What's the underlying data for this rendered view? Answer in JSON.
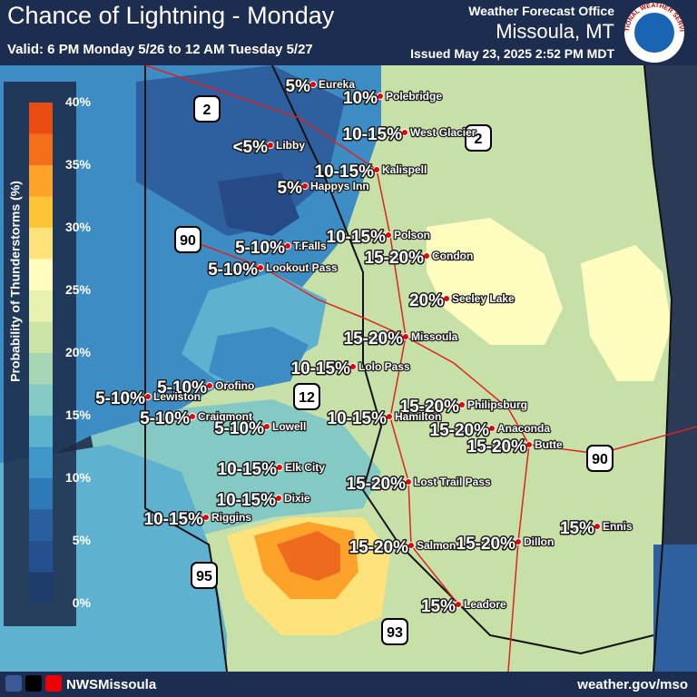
{
  "header": {
    "title": "Chance of Lightning - Monday",
    "valid": "Valid: 6 PM Monday 5/26 to 12 AM Tuesday 5/27",
    "office": "Weather Forecast Office",
    "location": "Missoula, MT",
    "issued": "Issued May 23, 2025 2:52 PM MDT",
    "logo": "NATIONAL WEATHER SERVICE"
  },
  "legend": {
    "title": "Probability of Thunderstorms (%)",
    "labels": [
      "40%",
      "35%",
      "30%",
      "25%",
      "20%",
      "15%",
      "10%",
      "5%",
      "0%"
    ]
  },
  "shields": [
    "2",
    "2",
    "90",
    "90",
    "12",
    "95",
    "93"
  ],
  "cities": [
    {
      "name": "Eureka",
      "chance": "5%"
    },
    {
      "name": "Polebridge",
      "chance": "10%"
    },
    {
      "name": "West Glacier",
      "chance": "10-15%"
    },
    {
      "name": "Libby",
      "chance": "<5%"
    },
    {
      "name": "Kalispell",
      "chance": "10-15%"
    },
    {
      "name": "Happys Inn",
      "chance": "5%"
    },
    {
      "name": "Polson",
      "chance": "10-15%"
    },
    {
      "name": "T.Falls",
      "chance": "5-10%"
    },
    {
      "name": "Condon",
      "chance": "15-20%"
    },
    {
      "name": "Lookout Pass",
      "chance": "5-10%"
    },
    {
      "name": "Seeley Lake",
      "chance": "20%"
    },
    {
      "name": "Missoula",
      "chance": "15-20%"
    },
    {
      "name": "Lolo Pass",
      "chance": "10-15%"
    },
    {
      "name": "Orofino",
      "chance": "5-10%"
    },
    {
      "name": "Lewiston",
      "chance": "5-10%"
    },
    {
      "name": "Philipsburg",
      "chance": "15-20%"
    },
    {
      "name": "Craigmont",
      "chance": "5-10%"
    },
    {
      "name": "Hamilton",
      "chance": "10-15%"
    },
    {
      "name": "Lowell",
      "chance": "5-10%"
    },
    {
      "name": "Anaconda",
      "chance": "15-20%"
    },
    {
      "name": "Butte",
      "chance": "15-20%"
    },
    {
      "name": "Elk City",
      "chance": "10-15%"
    },
    {
      "name": "Lost Trail Pass",
      "chance": "15-20%"
    },
    {
      "name": "Dixie",
      "chance": "10-15%"
    },
    {
      "name": "Riggins",
      "chance": "10-15%"
    },
    {
      "name": "Ennis",
      "chance": "15%"
    },
    {
      "name": "Salmon",
      "chance": "15-20%"
    },
    {
      "name": "Dillon",
      "chance": "15-20%"
    },
    {
      "name": "Leadore",
      "chance": "15%"
    }
  ],
  "footer": {
    "social": "NWSMissoula",
    "website": "weather.gov/mso"
  }
}
